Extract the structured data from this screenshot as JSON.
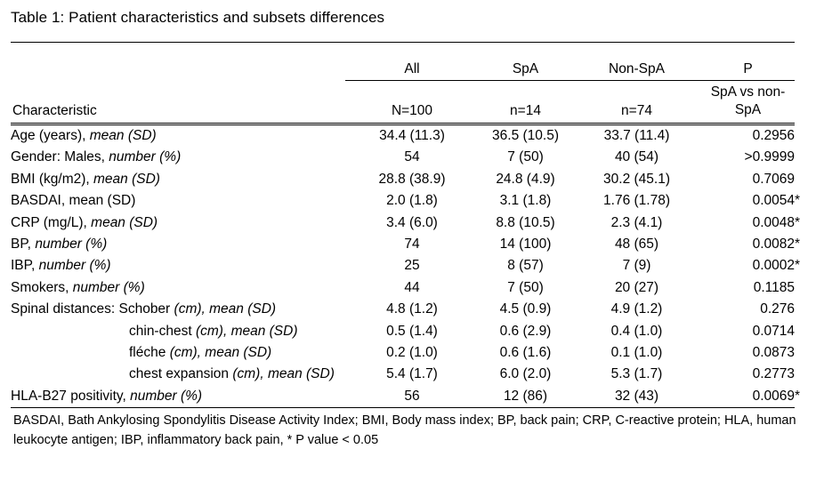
{
  "title": "Table 1: Patient characteristics and subsets differences",
  "table": {
    "group_headers": {
      "all": "All",
      "spa": "SpA",
      "nonspa": "Non-SpA",
      "p": "P"
    },
    "sub_headers": {
      "characteristic": "Characteristic",
      "all": "N=100",
      "spa": "n=14",
      "nonspa": "n=74",
      "p": "SpA vs non-SpA"
    },
    "rows": [
      {
        "label": "Age (years),",
        "label_italic": "mean (SD)",
        "indent": false,
        "all": "34.4 (11.3)",
        "spa": "36.5 (10.5)",
        "nonspa": "33.7 (11.4)",
        "p": "0.2956"
      },
      {
        "label": "Gender: Males,",
        "label_italic": "number (%)",
        "indent": false,
        "all": "54",
        "spa": "7 (50)",
        "nonspa": "40 (54)",
        "p": ">0.9999"
      },
      {
        "label": "BMI (kg/m2),",
        "label_italic": "mean (SD)",
        "indent": false,
        "all": "28.8 (38.9)",
        "spa": "24.8 (4.9)",
        "nonspa": "30.2 (45.1)",
        "p": "0.7069"
      },
      {
        "label": "BASDAI, mean (SD)",
        "label_italic": "",
        "indent": false,
        "all": "2.0 (1.8)",
        "spa": "3.1 (1.8)",
        "nonspa": "1.76 (1.78)",
        "p": "0.0054*"
      },
      {
        "label": "CRP (mg/L),",
        "label_italic": "mean (SD)",
        "indent": false,
        "all": "3.4 (6.0)",
        "spa": "8.8 (10.5)",
        "nonspa": "2.3 (4.1)",
        "p": "0.0048*"
      },
      {
        "label": "BP,",
        "label_italic": "number (%)",
        "indent": false,
        "all": "74",
        "spa": "14 (100)",
        "nonspa": "48 (65)",
        "p": "0.0082*"
      },
      {
        "label": "IBP,",
        "label_italic": "number (%)",
        "indent": false,
        "all": "25",
        "spa": "8 (57)",
        "nonspa": "7 (9)",
        "p": "0.0002*"
      },
      {
        "label": "Smokers,",
        "label_italic": "number (%)",
        "indent": false,
        "all": "44",
        "spa": "7 (50)",
        "nonspa": "20 (27)",
        "p": "0.1185"
      },
      {
        "label": "Spinal distances: Schober",
        "label_italic": "(cm), mean (SD)",
        "indent": false,
        "all": "4.8 (1.2)",
        "spa": "4.5 (0.9)",
        "nonspa": "4.9 (1.2)",
        "p": "0.276"
      },
      {
        "label": "chin-chest",
        "label_italic": "(cm), mean (SD)",
        "indent": true,
        "all": "0.5 (1.4)",
        "spa": "0.6 (2.9)",
        "nonspa": "0.4 (1.0)",
        "p": "0.0714"
      },
      {
        "label": "fléche",
        "label_italic": "(cm), mean (SD)",
        "indent": true,
        "all": "0.2 (1.0)",
        "spa": "0.6 (1.6)",
        "nonspa": "0.1 (1.0)",
        "p": "0.0873"
      },
      {
        "label": "chest expansion",
        "label_italic": "(cm), mean (SD)",
        "indent": true,
        "all": "5.4 (1.7)",
        "spa": "6.0 (2.0)",
        "nonspa": "5.3 (1.7)",
        "p": "0.2773"
      },
      {
        "label": "HLA-B27 positivity,",
        "label_italic": "number (%)",
        "indent": false,
        "all": "56",
        "spa": "12 (86)",
        "nonspa": "32 (43)",
        "p": "0.0069*"
      }
    ]
  },
  "footnote": "BASDAI, Bath Ankylosing Spondylitis Disease Activity Index; BMI, Body mass index; BP, back pain; CRP, C-reactive protein; HLA, human leukocyte antigen; IBP, inflammatory back pain, * P value < 0.05"
}
